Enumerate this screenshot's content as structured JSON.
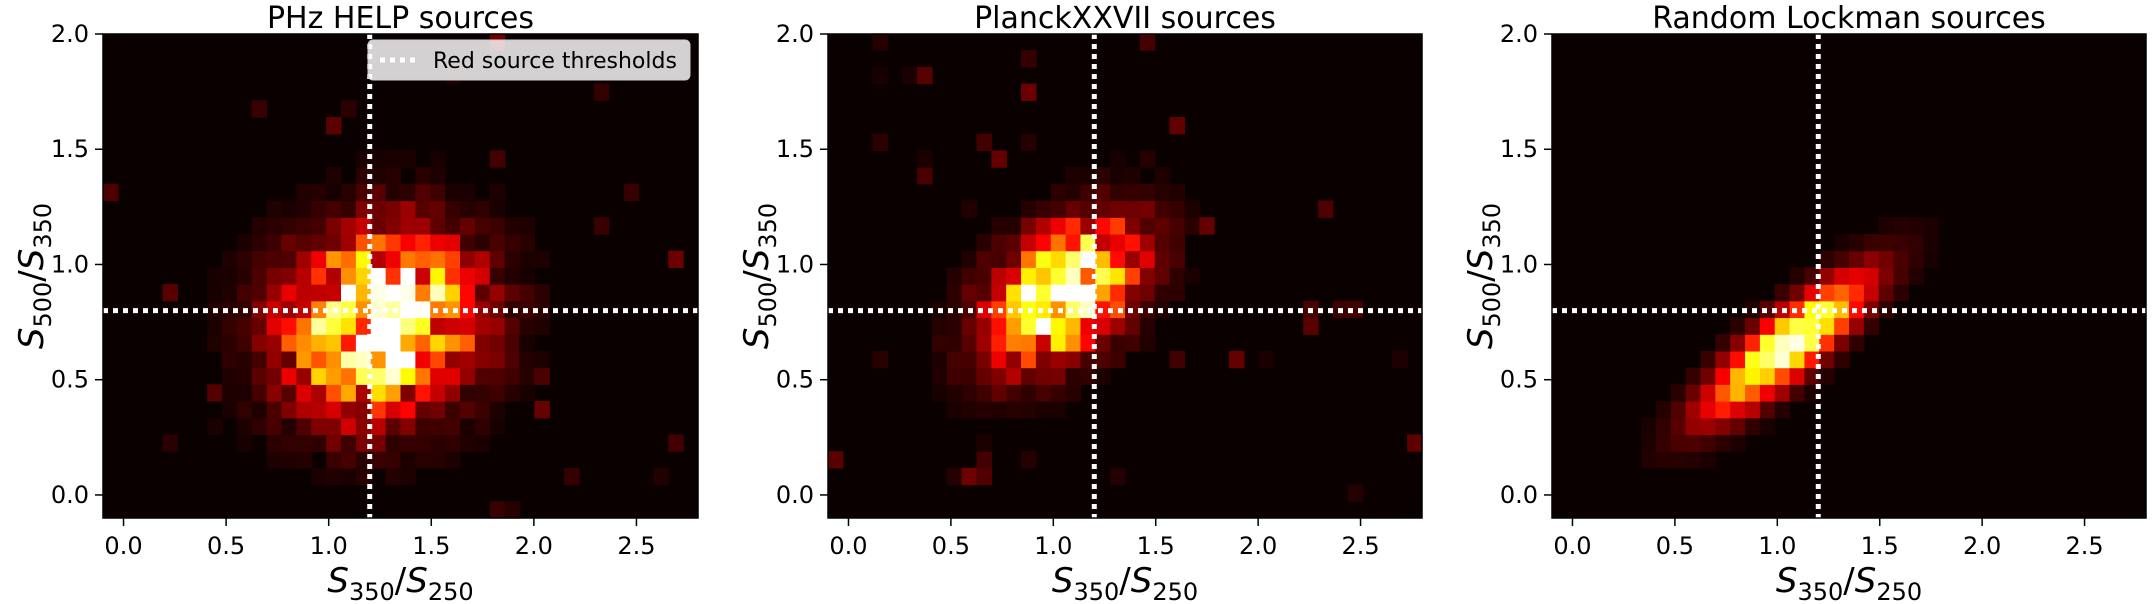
{
  "chart_data": [
    {
      "type": "heatmap",
      "title": "PHz HELP sources",
      "xlabel": "S350/S250",
      "ylabel": "S500/S350",
      "xlim": [
        -0.1,
        2.8
      ],
      "ylim": [
        -0.1,
        2.0
      ],
      "xticks": [
        "0.0",
        "0.5",
        "1.0",
        "1.5",
        "2.0",
        "2.5"
      ],
      "yticks": [
        "0.0",
        "0.5",
        "1.0",
        "1.5",
        "2.0"
      ],
      "threshold_x": 1.2,
      "threshold_y": 0.8,
      "legend": {
        "label": "Red source thresholds",
        "position": "upper-right"
      },
      "density_model": {
        "center_x": 1.25,
        "center_y": 0.75,
        "sigma_x": 0.3,
        "sigma_y": 0.25,
        "correlation": 0.1,
        "noise": 0.6
      }
    },
    {
      "type": "heatmap",
      "title": "PlanckXXVII sources",
      "xlabel": "S350/S250",
      "ylabel": "S500/S350",
      "xlim": [
        -0.1,
        2.8
      ],
      "ylim": [
        -0.1,
        2.0
      ],
      "xticks": [
        "0.0",
        "0.5",
        "1.0",
        "1.5",
        "2.0",
        "2.5"
      ],
      "yticks": [
        "0.0",
        "0.5",
        "1.0",
        "1.5",
        "2.0"
      ],
      "threshold_x": 1.2,
      "threshold_y": 0.8,
      "density_model": {
        "center_x": 1.05,
        "center_y": 0.88,
        "sigma_x": 0.24,
        "sigma_y": 0.2,
        "correlation": 0.45,
        "noise": 0.5
      }
    },
    {
      "type": "heatmap",
      "title": "Random Lockman sources",
      "xlabel": "S350/S250",
      "ylabel": "S500/S350",
      "xlim": [
        -0.1,
        2.8
      ],
      "ylim": [
        -0.1,
        2.0
      ],
      "xticks": [
        "0.0",
        "0.5",
        "1.0",
        "1.5",
        "2.0",
        "2.5"
      ],
      "yticks": [
        "0.0",
        "0.5",
        "1.0",
        "1.5",
        "2.0"
      ],
      "threshold_x": 1.2,
      "threshold_y": 0.8,
      "density_model": {
        "center_x": 1.05,
        "center_y": 0.65,
        "sigma_x": 0.26,
        "sigma_y": 0.2,
        "correlation": 0.85,
        "noise": 0.12
      }
    }
  ]
}
